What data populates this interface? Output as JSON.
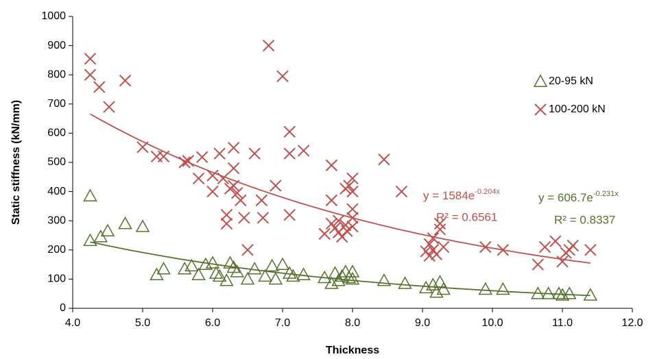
{
  "chart_data": {
    "type": "scatter",
    "xlabel": "Thickness",
    "ylabel": "Static stiffness (kN/mm)",
    "xlim": [
      4,
      12
    ],
    "ylim": [
      0,
      1000
    ],
    "xticks": [
      {
        "value": 4,
        "label": "4.0"
      },
      {
        "value": 5,
        "label": "5.0"
      },
      {
        "value": 6,
        "label": "6.0"
      },
      {
        "value": 7,
        "label": "7.0"
      },
      {
        "value": 8,
        "label": "8.0"
      },
      {
        "value": 9,
        "label": "9.0"
      },
      {
        "value": 10,
        "label": "10.0"
      },
      {
        "value": 11,
        "label": "11.0"
      },
      {
        "value": 12,
        "label": "12.0"
      }
    ],
    "yticks": [
      0,
      100,
      200,
      300,
      400,
      500,
      600,
      700,
      800,
      900,
      1000
    ],
    "grid": false,
    "legend": "right",
    "series": [
      {
        "name": "20-95 kN",
        "color": "#55722c",
        "marker": "triangle",
        "x": [
          4.25,
          4.25,
          4.4,
          4.5,
          4.75,
          5.0,
          5.2,
          5.3,
          5.6,
          5.7,
          5.8,
          5.9,
          6.0,
          6.05,
          6.1,
          6.2,
          6.25,
          6.3,
          6.35,
          6.5,
          6.6,
          6.75,
          6.85,
          6.9,
          7.0,
          7.1,
          7.15,
          7.3,
          7.6,
          7.7,
          7.75,
          7.8,
          7.85,
          7.9,
          7.95,
          8.0,
          8.0,
          8.45,
          8.75,
          9.05,
          9.15,
          9.2,
          9.25,
          9.3,
          9.9,
          10.15,
          10.65,
          10.8,
          10.95,
          11.0,
          11.1,
          11.4
        ],
        "values": [
          385,
          232,
          245,
          265,
          290,
          280,
          115,
          135,
          135,
          145,
          115,
          150,
          155,
          120,
          110,
          95,
          155,
          140,
          125,
          100,
          135,
          110,
          145,
          100,
          150,
          120,
          110,
          115,
          105,
          85,
          120,
          95,
          110,
          125,
          105,
          125,
          100,
          95,
          85,
          70,
          80,
          55,
          90,
          65,
          65,
          65,
          50,
          50,
          50,
          45,
          50,
          45
        ],
        "trendline": {
          "a": 606.7,
          "b": -0.231,
          "equation": "y = 606.7e",
          "exponent": "-0.231x",
          "r2": "R² = 0.8337"
        }
      },
      {
        "name": "100-200 kN",
        "color": "#c0504d",
        "marker": "cross",
        "x": [
          4.25,
          4.25,
          4.38,
          4.52,
          4.75,
          5.0,
          5.2,
          5.3,
          5.6,
          5.65,
          5.8,
          5.85,
          6.0,
          6.0,
          6.1,
          6.15,
          6.2,
          6.2,
          6.25,
          6.3,
          6.3,
          6.3,
          6.35,
          6.4,
          6.45,
          6.5,
          6.6,
          6.7,
          6.72,
          6.8,
          6.9,
          7.0,
          7.1,
          7.1,
          7.1,
          7.3,
          7.6,
          7.7,
          7.7,
          7.7,
          7.75,
          7.8,
          7.8,
          7.85,
          7.9,
          7.9,
          7.92,
          7.95,
          8.0,
          8.0,
          8.0,
          8.0,
          8.0,
          8.45,
          8.7,
          9.05,
          9.1,
          9.1,
          9.15,
          9.15,
          9.2,
          9.25,
          9.25,
          9.3,
          9.9,
          10.15,
          10.65,
          10.75,
          10.9,
          11.0,
          11.05,
          11.1,
          11.15,
          11.4
        ],
        "values": [
          855,
          800,
          758,
          690,
          780,
          552,
          520,
          520,
          500,
          505,
          445,
          518,
          400,
          455,
          530,
          445,
          290,
          320,
          410,
          480,
          550,
          420,
          395,
          370,
          310,
          200,
          530,
          370,
          310,
          900,
          420,
          795,
          605,
          530,
          320,
          540,
          255,
          490,
          370,
          290,
          275,
          260,
          300,
          245,
          410,
          285,
          265,
          420,
          445,
          400,
          340,
          310,
          280,
          510,
          400,
          195,
          220,
          180,
          240,
          200,
          185,
          290,
          270,
          210,
          210,
          200,
          150,
          210,
          230,
          160,
          190,
          200,
          215,
          200
        ],
        "trendline": {
          "a": 1584,
          "b": -0.204,
          "equation": "y = 1584e",
          "exponent": "-0.204x",
          "r2": "R² = 0.6561"
        }
      }
    ]
  }
}
